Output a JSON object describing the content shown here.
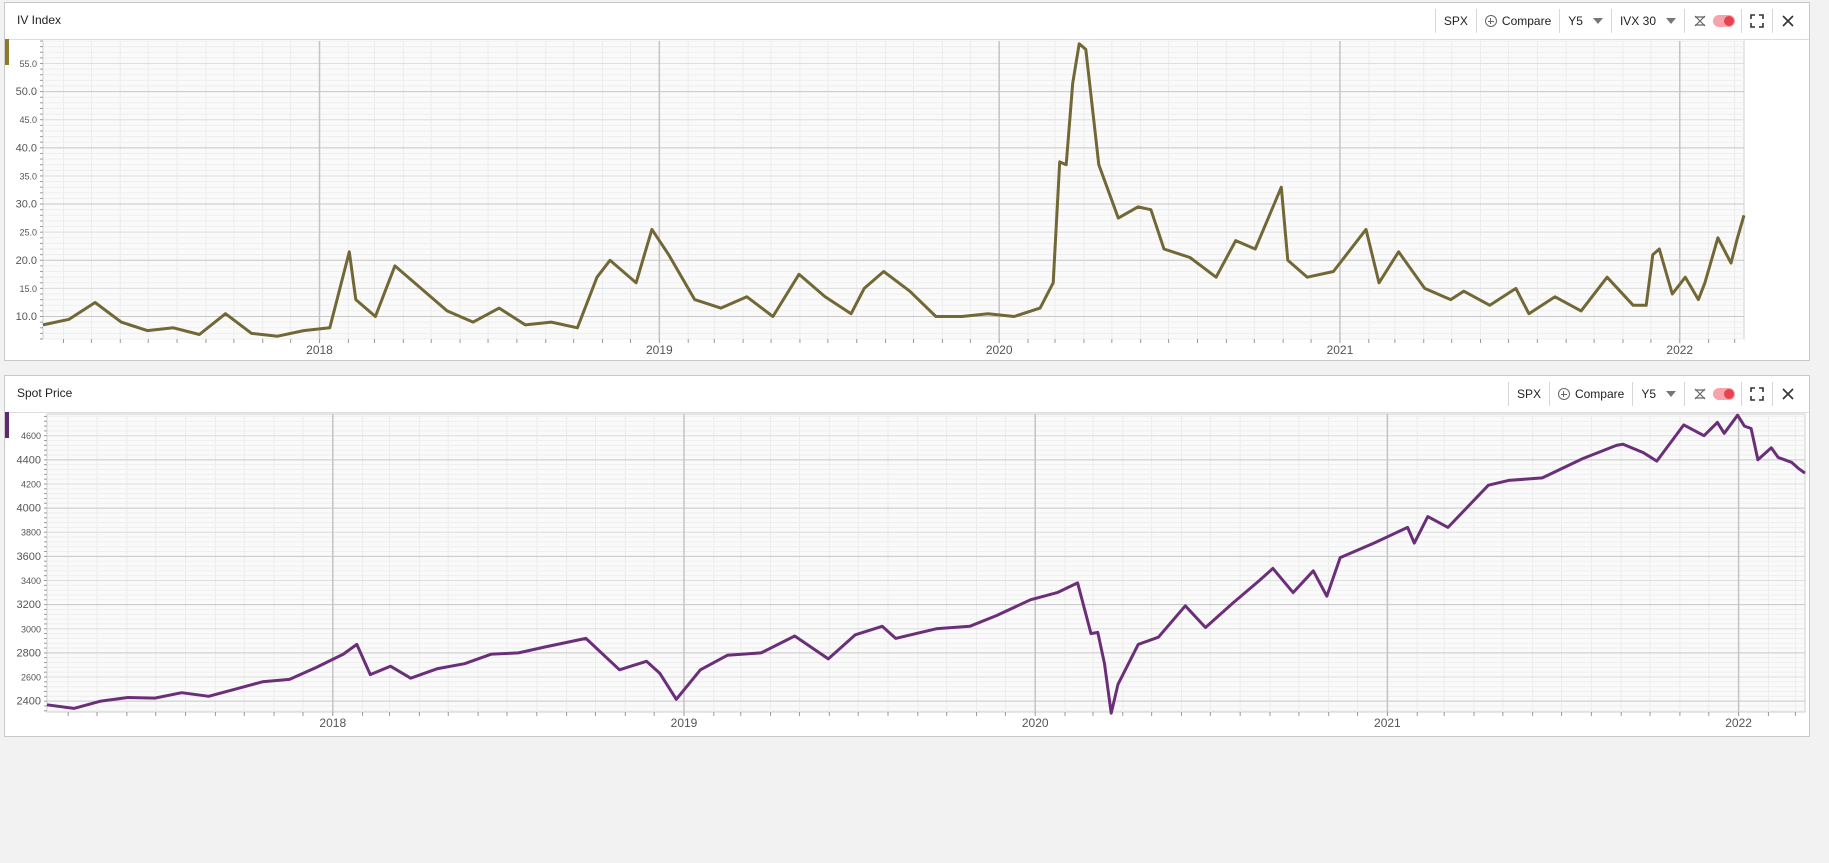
{
  "panels": [
    {
      "title": "IV Index",
      "toolbar": {
        "symbol": "SPX",
        "compare_label": "Compare",
        "period": "Y5",
        "series_selector": "IVX 30"
      }
    },
    {
      "title": "Spot Price",
      "toolbar": {
        "symbol": "SPX",
        "compare_label": "Compare",
        "period": "Y5"
      }
    }
  ],
  "colors": {
    "iv_line": "#726836",
    "spot_line": "#6b2f7a",
    "iv_marker": "#8a7a2a",
    "spot_marker": "#5b2a6e",
    "grid": "#e3e3e3",
    "major_grid": "#c8c8c8"
  },
  "chart_data": [
    {
      "type": "line",
      "title": "IV Index",
      "x_ticks": [
        "2018",
        "2019",
        "2020",
        "2021",
        "2022"
      ],
      "y_ticks": [
        "10.0",
        "15.0",
        "20.0",
        "25.0",
        "30.0",
        "35.0",
        "40.0",
        "45.0",
        "50.0",
        "55.0"
      ],
      "ylim": [
        6.0,
        59.0
      ],
      "xlim": [
        "2017-03-10",
        "2022-03-11"
      ],
      "grid": true,
      "series": [
        {
          "x": [
            "2017-03-10",
            "2017-04-07",
            "2017-05-05",
            "2017-06-02",
            "2017-06-30",
            "2017-07-28",
            "2017-08-25",
            "2017-09-22",
            "2017-10-20",
            "2017-11-17",
            "2017-12-15",
            "2018-01-12",
            "2018-02-02",
            "2018-02-09",
            "2018-03-02",
            "2018-03-23",
            "2018-04-20",
            "2018-05-18",
            "2018-06-15",
            "2018-07-13",
            "2018-08-10",
            "2018-09-07",
            "2018-10-05",
            "2018-10-26",
            "2018-11-09",
            "2018-12-07",
            "2018-12-24",
            "2019-01-11",
            "2019-02-08",
            "2019-03-08",
            "2019-04-05",
            "2019-05-03",
            "2019-05-31",
            "2019-06-28",
            "2019-07-26",
            "2019-08-09",
            "2019-08-30",
            "2019-09-27",
            "2019-10-25",
            "2019-11-22",
            "2019-12-20",
            "2020-01-17",
            "2020-02-14",
            "2020-02-28",
            "2020-03-06",
            "2020-03-13",
            "2020-03-20",
            "2020-03-27",
            "2020-04-03",
            "2020-04-17",
            "2020-05-08",
            "2020-05-29",
            "2020-06-12",
            "2020-06-26",
            "2020-07-24",
            "2020-08-21",
            "2020-09-11",
            "2020-10-02",
            "2020-10-30",
            "2020-11-06",
            "2020-11-27",
            "2020-12-25",
            "2021-01-29",
            "2021-02-12",
            "2021-03-05",
            "2021-04-02",
            "2021-04-30",
            "2021-05-14",
            "2021-06-11",
            "2021-07-09",
            "2021-07-23",
            "2021-08-20",
            "2021-09-17",
            "2021-10-15",
            "2021-11-12",
            "2021-11-26",
            "2021-12-03",
            "2021-12-10",
            "2021-12-24",
            "2022-01-07",
            "2022-01-21",
            "2022-01-28",
            "2022-02-11",
            "2022-02-25",
            "2022-03-04",
            "2022-03-11"
          ],
          "y": [
            8.5,
            9.5,
            12.5,
            9.0,
            7.5,
            8.0,
            6.8,
            10.5,
            7.0,
            6.5,
            7.5,
            8.0,
            21.5,
            13.0,
            10.0,
            19.0,
            15.0,
            11.0,
            9.0,
            11.5,
            8.5,
            9.0,
            8.0,
            17.0,
            20.0,
            16.0,
            25.5,
            21.0,
            13.0,
            11.5,
            13.5,
            10.0,
            17.5,
            13.5,
            10.5,
            15.0,
            18.0,
            14.5,
            10.0,
            10.0,
            10.5,
            10.0,
            11.5,
            16.0,
            37.5,
            37.0,
            51.5,
            58.5,
            57.5,
            37.0,
            27.5,
            29.5,
            29.0,
            22.0,
            20.5,
            17.0,
            23.5,
            22.0,
            33.0,
            20.0,
            17.0,
            18.0,
            25.5,
            16.0,
            21.5,
            15.0,
            13.0,
            14.5,
            12.0,
            15.0,
            10.5,
            13.5,
            11.0,
            17.0,
            12.0,
            12.0,
            21.0,
            22.0,
            14.0,
            17.0,
            13.0,
            16.0,
            24.0,
            19.5,
            24.0,
            28.0
          ]
        }
      ]
    },
    {
      "type": "line",
      "title": "Spot Price",
      "x_ticks": [
        "2018",
        "2019",
        "2020",
        "2021",
        "2022"
      ],
      "y_ticks": [
        "2400",
        "2600",
        "2800",
        "3000",
        "3200",
        "3400",
        "3600",
        "3800",
        "4000",
        "4200",
        "4400",
        "4600"
      ],
      "ylim": [
        2310,
        4780
      ],
      "xlim": [
        "2017-03-10",
        "2022-03-11"
      ],
      "grid": true,
      "series": [
        {
          "x": [
            "2017-03-10",
            "2017-04-07",
            "2017-05-05",
            "2017-06-02",
            "2017-06-30",
            "2017-07-28",
            "2017-08-25",
            "2017-09-22",
            "2017-10-20",
            "2017-11-17",
            "2017-12-15",
            "2018-01-12",
            "2018-01-26",
            "2018-02-09",
            "2018-03-02",
            "2018-03-23",
            "2018-04-20",
            "2018-05-18",
            "2018-06-15",
            "2018-07-13",
            "2018-08-10",
            "2018-09-21",
            "2018-10-26",
            "2018-11-23",
            "2018-12-07",
            "2018-12-24",
            "2019-01-18",
            "2019-02-15",
            "2019-03-22",
            "2019-04-26",
            "2019-05-31",
            "2019-06-28",
            "2019-07-26",
            "2019-08-09",
            "2019-09-20",
            "2019-10-25",
            "2019-11-22",
            "2019-12-27",
            "2020-01-24",
            "2020-02-14",
            "2020-02-28",
            "2020-03-06",
            "2020-03-13",
            "2020-03-20",
            "2020-03-27",
            "2020-04-17",
            "2020-05-08",
            "2020-06-05",
            "2020-06-26",
            "2020-07-24",
            "2020-08-21",
            "2020-09-04",
            "2020-09-25",
            "2020-10-16",
            "2020-10-30",
            "2020-11-13",
            "2020-12-18",
            "2021-01-22",
            "2021-01-29",
            "2021-02-12",
            "2021-03-05",
            "2021-04-16",
            "2021-05-07",
            "2021-06-11",
            "2021-07-23",
            "2021-08-27",
            "2021-09-03",
            "2021-09-24",
            "2021-10-08",
            "2021-11-05",
            "2021-11-26",
            "2021-12-10",
            "2021-12-17",
            "2021-12-31",
            "2022-01-07",
            "2022-01-14",
            "2022-01-21",
            "2022-02-04",
            "2022-02-11",
            "2022-02-25",
            "2022-03-04",
            "2022-03-11"
          ],
          "y": [
            2370,
            2340,
            2400,
            2430,
            2425,
            2470,
            2440,
            2500,
            2560,
            2580,
            2680,
            2790,
            2870,
            2620,
            2690,
            2590,
            2670,
            2710,
            2790,
            2800,
            2850,
            2920,
            2660,
            2730,
            2630,
            2415,
            2660,
            2780,
            2800,
            2940,
            2750,
            2950,
            3020,
            2920,
            3000,
            3020,
            3110,
            3240,
            3300,
            3380,
            2960,
            2970,
            2710,
            2300,
            2540,
            2870,
            2930,
            3190,
            3010,
            3210,
            3400,
            3500,
            3300,
            3480,
            3270,
            3590,
            3710,
            3840,
            3710,
            3930,
            3840,
            4190,
            4230,
            4250,
            4410,
            4520,
            4530,
            4460,
            4390,
            4690,
            4600,
            4710,
            4620,
            4770,
            4680,
            4660,
            4400,
            4500,
            4420,
            4380,
            4330,
            4290
          ]
        }
      ]
    }
  ]
}
